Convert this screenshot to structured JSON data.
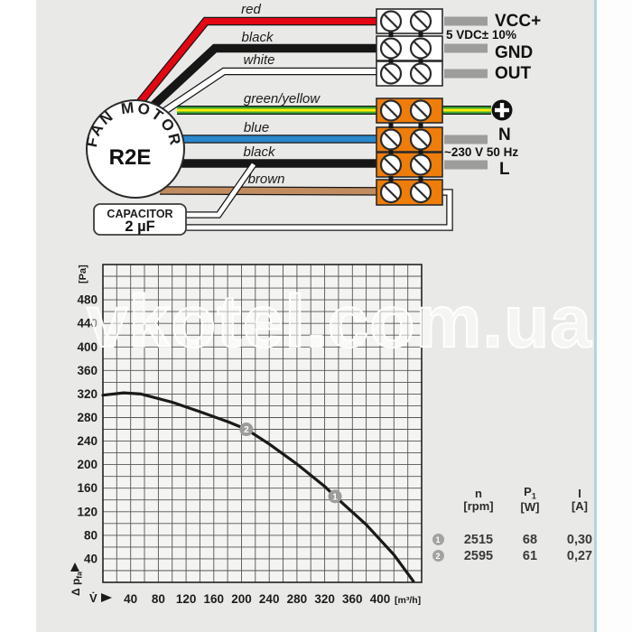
{
  "watermark": "vkotel.com.ua",
  "diagram": {
    "motor": {
      "arc_label": "FAN MOTOR",
      "model": "R2E"
    },
    "capacitor": {
      "title": "CAPACITOR",
      "value": "2 µF"
    },
    "wire_labels": {
      "red": "red",
      "black_signal": "black",
      "white": "white",
      "green_yellow": "green/yellow",
      "blue": "blue",
      "black_mains": "black",
      "brown": "brown"
    },
    "terminal_labels": {
      "vcc": "VCC+",
      "signal_note": "5 VDC± 10%",
      "gnd": "GND",
      "out": "OUT",
      "n": "N",
      "mains_note": "~230 V 50 Hz",
      "l": "L"
    },
    "colors": {
      "red": "#e30613",
      "black": "#161616",
      "white": "#ffffff",
      "green": "#3aaa35",
      "yellow": "#ffed00",
      "blue": "#2a88cc",
      "brown": "#c18c60",
      "orange": "#ef7d0a",
      "stub_gray": "#9d9d9c"
    }
  },
  "chart_data": {
    "type": "line",
    "title": "",
    "ylabel": "[Pa]",
    "xlabel": "[m³/h]",
    "y_axis_name": "Δ p",
    "y_axis_name_sub": "fa",
    "x_axis_name": "V̇",
    "x_ticks": [
      40,
      80,
      120,
      160,
      200,
      240,
      280,
      320,
      360,
      400
    ],
    "y_ticks": [
      40,
      80,
      120,
      160,
      200,
      240,
      280,
      320,
      360,
      400,
      440,
      480
    ],
    "xlim": [
      0,
      460
    ],
    "ylim": [
      0,
      540
    ],
    "grid": true,
    "grid_step": 20,
    "legend_position": "none",
    "curve": [
      [
        0,
        318
      ],
      [
        30,
        322
      ],
      [
        55,
        320
      ],
      [
        100,
        306
      ],
      [
        140,
        290
      ],
      [
        180,
        273
      ],
      [
        207,
        260
      ],
      [
        240,
        235
      ],
      [
        280,
        201
      ],
      [
        320,
        163
      ],
      [
        335,
        146
      ],
      [
        380,
        98
      ],
      [
        420,
        47
      ],
      [
        448,
        2
      ]
    ],
    "points": [
      {
        "label": "2",
        "x": 207,
        "y": 260
      },
      {
        "label": "1",
        "x": 335,
        "y": 146
      }
    ],
    "curve_color": "#1a1a1a",
    "marker_color": "#9c9c9a",
    "grid_color": "#555555"
  },
  "table": {
    "col1": {
      "name": "n",
      "unit": "[rpm]"
    },
    "col2": {
      "name": "P",
      "sub": "1",
      "unit": "[W]"
    },
    "col3": {
      "name": "I",
      "unit": "[A]"
    },
    "rows": [
      {
        "marker": "1",
        "n": "2515",
        "p": "68",
        "i": "0,30"
      },
      {
        "marker": "2",
        "n": "2595",
        "p": "61",
        "i": "0,27"
      }
    ]
  }
}
